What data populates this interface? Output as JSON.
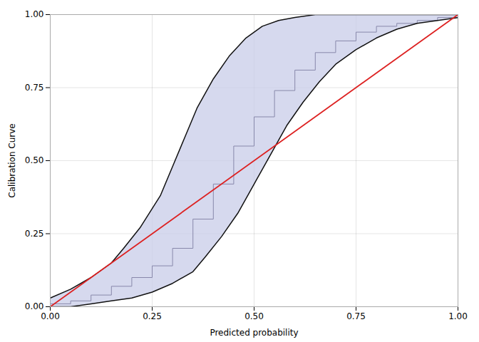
{
  "chart_data": {
    "type": "line",
    "xlabel": "Predicted probability",
    "ylabel": "Calibration Curve",
    "xlim": [
      0.0,
      1.0
    ],
    "ylim": [
      0.0,
      1.0
    ],
    "xticks": [
      {
        "value": 0.0,
        "label": "0.00"
      },
      {
        "value": 0.25,
        "label": "0.25"
      },
      {
        "value": 0.5,
        "label": "0.50"
      },
      {
        "value": 0.75,
        "label": "0.75"
      },
      {
        "value": 1.0,
        "label": "1.00"
      }
    ],
    "yticks": [
      {
        "value": 0.0,
        "label": "0.00"
      },
      {
        "value": 0.25,
        "label": "0.25"
      },
      {
        "value": 0.5,
        "label": "0.50"
      },
      {
        "value": 0.75,
        "label": "0.75"
      },
      {
        "value": 1.0,
        "label": "1.00"
      }
    ],
    "grid": true,
    "band_color": "#C8CCE8",
    "series": [
      {
        "type": "step",
        "color": "#8888AA",
        "x": [
          0.0,
          0.05,
          0.1,
          0.15,
          0.2,
          0.25,
          0.3,
          0.35,
          0.4,
          0.45,
          0.5,
          0.55,
          0.6,
          0.65,
          0.7,
          0.75,
          0.8,
          0.85,
          0.9,
          0.95,
          1.0
        ],
        "values": [
          0.01,
          0.02,
          0.04,
          0.07,
          0.1,
          0.14,
          0.2,
          0.3,
          0.42,
          0.55,
          0.65,
          0.74,
          0.81,
          0.87,
          0.91,
          0.94,
          0.96,
          0.97,
          0.98,
          0.99,
          1.0
        ]
      },
      {
        "type": "band",
        "color": "#111111",
        "x": [
          0.0,
          0.05,
          0.1,
          0.15,
          0.18,
          0.22,
          0.27,
          0.3,
          0.33,
          0.36,
          0.4,
          0.44,
          0.48,
          0.52,
          0.56,
          0.6,
          0.65,
          0.7,
          0.75,
          0.8,
          0.85,
          0.9,
          0.95,
          1.0
        ],
        "values": [
          0.03,
          0.06,
          0.1,
          0.15,
          0.2,
          0.27,
          0.38,
          0.48,
          0.58,
          0.68,
          0.78,
          0.86,
          0.92,
          0.96,
          0.98,
          0.99,
          1.0,
          1.0,
          1.0,
          1.0,
          1.0,
          1.0,
          1.0,
          1.0
        ]
      },
      {
        "type": "band",
        "color": "#111111",
        "x": [
          0.0,
          0.05,
          0.1,
          0.15,
          0.2,
          0.25,
          0.3,
          0.35,
          0.38,
          0.42,
          0.46,
          0.5,
          0.54,
          0.58,
          0.62,
          0.66,
          0.7,
          0.75,
          0.8,
          0.85,
          0.9,
          0.95,
          1.0
        ],
        "values": [
          0.0,
          0.0,
          0.01,
          0.02,
          0.03,
          0.05,
          0.08,
          0.12,
          0.17,
          0.24,
          0.32,
          0.42,
          0.52,
          0.62,
          0.7,
          0.77,
          0.83,
          0.88,
          0.92,
          0.95,
          0.97,
          0.98,
          0.99
        ]
      },
      {
        "type": "line",
        "color": "#DD2222",
        "x": [
          0,
          1
        ],
        "values": [
          0,
          1
        ]
      }
    ]
  }
}
